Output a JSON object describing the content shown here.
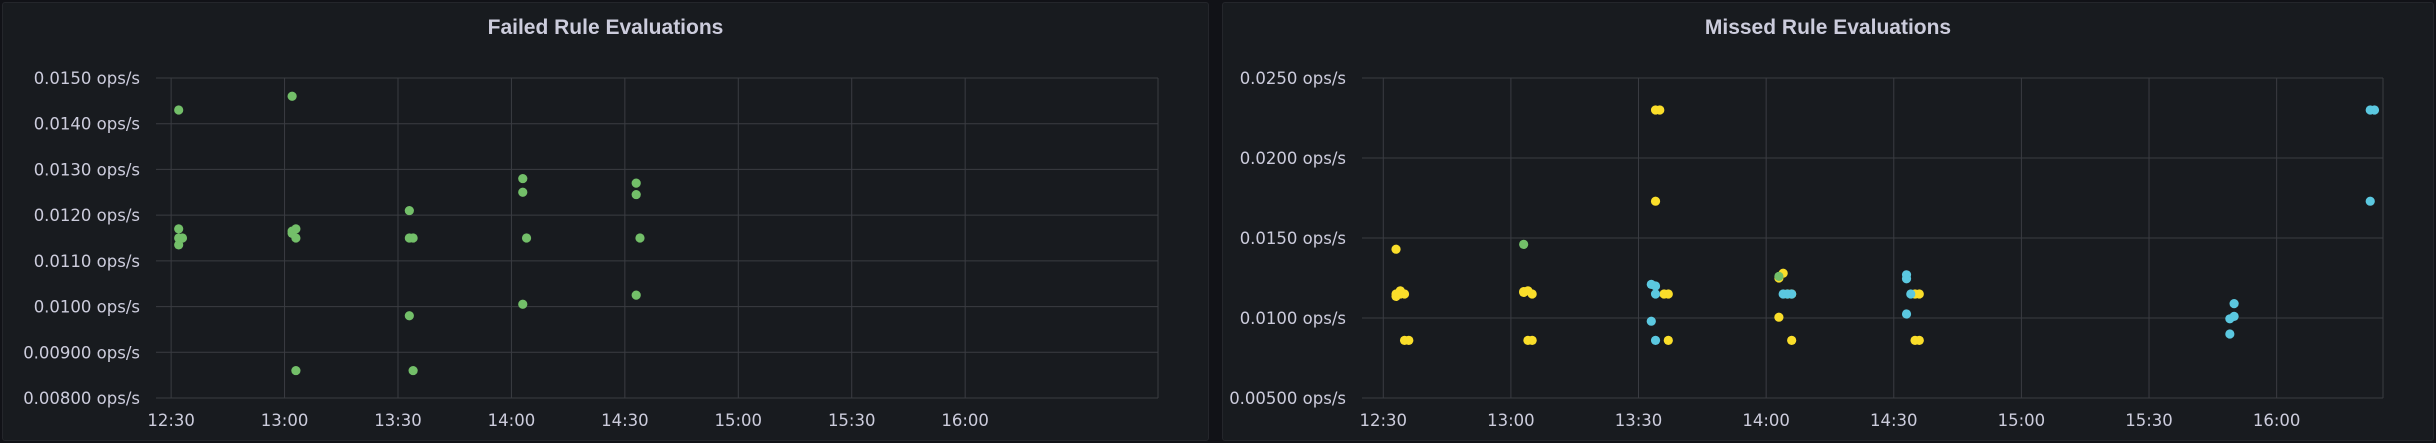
{
  "dashboard": {
    "panels": [
      {
        "title": "Failed Rule Evaluations"
      },
      {
        "title": "Missed Rule Evaluations"
      }
    ]
  },
  "chart_data": [
    {
      "type": "scatter",
      "title": "Failed Rule Evaluations",
      "xlabel": "",
      "ylabel": "",
      "x_ticks": [
        "12:30",
        "13:00",
        "13:30",
        "14:00",
        "14:30",
        "15:00",
        "15:30",
        "16:00"
      ],
      "y_ticks": [
        "0.0150 ops/s",
        "0.0140 ops/s",
        "0.0130 ops/s",
        "0.0120 ops/s",
        "0.0110 ops/s",
        "0.0100 ops/s",
        "0.00900 ops/s",
        "0.00800 ops/s"
      ],
      "y_tick_values": [
        0.015,
        0.014,
        0.013,
        0.012,
        0.011,
        0.01,
        0.009,
        0.008
      ],
      "xlim": [
        "12:26",
        "16:51"
      ],
      "ylim": [
        0.008,
        0.015
      ],
      "unit": "ops/s",
      "grid": true,
      "series": [
        {
          "color": "#73bf69",
          "points": [
            {
              "x": "12:32",
              "y": 0.0143
            },
            {
              "x": "12:32",
              "y": 0.01135
            },
            {
              "x": "12:32",
              "y": 0.0115
            },
            {
              "x": "12:32",
              "y": 0.0117
            },
            {
              "x": "12:33",
              "y": 0.0115
            },
            {
              "x": "13:02",
              "y": 0.0146
            },
            {
              "x": "13:02",
              "y": 0.01165
            },
            {
              "x": "13:02",
              "y": 0.0116
            },
            {
              "x": "13:03",
              "y": 0.0117
            },
            {
              "x": "13:03",
              "y": 0.0115
            },
            {
              "x": "13:03",
              "y": 0.0086
            },
            {
              "x": "13:33",
              "y": 0.0121
            },
            {
              "x": "13:33",
              "y": 0.0115
            },
            {
              "x": "13:33",
              "y": 0.0098
            },
            {
              "x": "13:34",
              "y": 0.0115
            },
            {
              "x": "13:34",
              "y": 0.0086
            },
            {
              "x": "14:03",
              "y": 0.0128
            },
            {
              "x": "14:03",
              "y": 0.0125
            },
            {
              "x": "14:03",
              "y": 0.01005
            },
            {
              "x": "14:04",
              "y": 0.0115
            },
            {
              "x": "14:33",
              "y": 0.0127
            },
            {
              "x": "14:33",
              "y": 0.01245
            },
            {
              "x": "14:33",
              "y": 0.01025
            },
            {
              "x": "14:34",
              "y": 0.0115
            }
          ]
        }
      ]
    },
    {
      "type": "scatter",
      "title": "Missed Rule Evaluations",
      "xlabel": "",
      "ylabel": "",
      "x_ticks": [
        "12:30",
        "13:00",
        "13:30",
        "14:00",
        "14:30",
        "15:00",
        "15:30",
        "16:00"
      ],
      "y_ticks": [
        "0.0250 ops/s",
        "0.0200 ops/s",
        "0.0150 ops/s",
        "0.0100 ops/s",
        "0.00500 ops/s"
      ],
      "y_tick_values": [
        0.025,
        0.02,
        0.015,
        0.01,
        0.005
      ],
      "xlim": [
        "12:25",
        "16:25"
      ],
      "ylim": [
        0.005,
        0.025
      ],
      "unit": "ops/s",
      "grid": true,
      "series": [
        {
          "color": "#fade2a",
          "points": [
            {
              "x": "12:33",
              "y": 0.0143
            },
            {
              "x": "12:33",
              "y": 0.01135
            },
            {
              "x": "12:33",
              "y": 0.0115
            },
            {
              "x": "12:34",
              "y": 0.0117
            },
            {
              "x": "12:34",
              "y": 0.0115
            },
            {
              "x": "12:35",
              "y": 0.0115
            },
            {
              "x": "12:35",
              "y": 0.0086
            },
            {
              "x": "12:36",
              "y": 0.0086
            },
            {
              "x": "13:03",
              "y": 0.01165
            },
            {
              "x": "13:03",
              "y": 0.0116
            },
            {
              "x": "13:04",
              "y": 0.0117
            },
            {
              "x": "13:05",
              "y": 0.0115
            },
            {
              "x": "13:04",
              "y": 0.0086
            },
            {
              "x": "13:05",
              "y": 0.0086
            },
            {
              "x": "13:34",
              "y": 0.023
            },
            {
              "x": "13:35",
              "y": 0.023
            },
            {
              "x": "13:34",
              "y": 0.0173
            },
            {
              "x": "13:36",
              "y": 0.0115
            },
            {
              "x": "13:37",
              "y": 0.0115
            },
            {
              "x": "13:37",
              "y": 0.0086
            },
            {
              "x": "14:04",
              "y": 0.0128
            },
            {
              "x": "14:03",
              "y": 0.0125
            },
            {
              "x": "14:05",
              "y": 0.0115
            },
            {
              "x": "14:06",
              "y": 0.0115
            },
            {
              "x": "14:03",
              "y": 0.01005
            },
            {
              "x": "14:06",
              "y": 0.0086
            },
            {
              "x": "14:35",
              "y": 0.0115
            },
            {
              "x": "14:36",
              "y": 0.0115
            },
            {
              "x": "14:35",
              "y": 0.0086
            },
            {
              "x": "14:36",
              "y": 0.0086
            }
          ]
        },
        {
          "color": "#73bf69",
          "points": [
            {
              "x": "13:03",
              "y": 0.0146
            },
            {
              "x": "14:03",
              "y": 0.0126
            }
          ]
        },
        {
          "color": "#5bc8e0",
          "points": [
            {
              "x": "13:33",
              "y": 0.0121
            },
            {
              "x": "13:34",
              "y": 0.012
            },
            {
              "x": "13:34",
              "y": 0.0115
            },
            {
              "x": "13:33",
              "y": 0.0098
            },
            {
              "x": "13:34",
              "y": 0.0086
            },
            {
              "x": "14:04",
              "y": 0.0115
            },
            {
              "x": "14:05",
              "y": 0.0115
            },
            {
              "x": "14:06",
              "y": 0.0115
            },
            {
              "x": "14:33",
              "y": 0.0127
            },
            {
              "x": "14:33",
              "y": 0.01245
            },
            {
              "x": "14:34",
              "y": 0.0115
            },
            {
              "x": "14:33",
              "y": 0.01025
            },
            {
              "x": "15:50",
              "y": 0.0109
            },
            {
              "x": "15:49",
              "y": 0.00995
            },
            {
              "x": "15:50",
              "y": 0.0101
            },
            {
              "x": "15:49",
              "y": 0.009
            },
            {
              "x": "16:22",
              "y": 0.023
            },
            {
              "x": "16:23",
              "y": 0.023
            },
            {
              "x": "16:22",
              "y": 0.0173
            }
          ]
        }
      ]
    }
  ]
}
